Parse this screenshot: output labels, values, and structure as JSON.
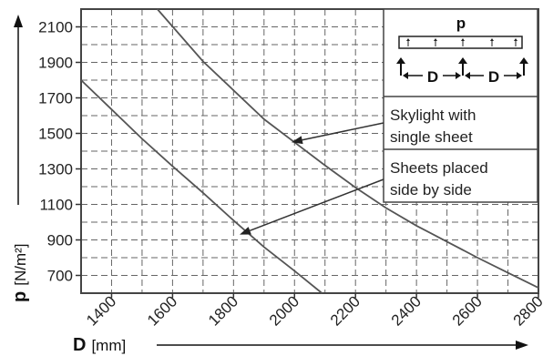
{
  "chart_data": {
    "type": "line",
    "title": "",
    "xlabel": {
      "symbol": "D",
      "unit": "[mm]"
    },
    "ylabel": {
      "symbol": "p",
      "unit": "[N/m²]"
    },
    "xlim": [
      1300,
      2800
    ],
    "ylim": [
      600,
      2200
    ],
    "x_major_ticks": [
      1400,
      1600,
      1800,
      2000,
      2200,
      2400,
      2600,
      2800
    ],
    "x_minor_ticks": [
      1300,
      1500,
      1700,
      1900,
      2100,
      2300,
      2500,
      2700
    ],
    "y_major_ticks": [
      700,
      900,
      1100,
      1300,
      1500,
      1700,
      1900,
      2100
    ],
    "y_minor_ticks": [
      600,
      800,
      1000,
      1200,
      1400,
      1600,
      1800,
      2000,
      2200
    ],
    "grid": true,
    "legend_position": "right",
    "series": [
      {
        "name": "Skylight with single sheet",
        "x": [
          1550,
          1700,
          1900,
          2000,
          2100,
          2200,
          2300,
          2400,
          2500,
          2600,
          2700,
          2800
        ],
        "y": [
          2200,
          1905,
          1580,
          1450,
          1320,
          1195,
          1080,
          980,
          890,
          800,
          715,
          630
        ]
      },
      {
        "name": "Sheets placed side by side",
        "x": [
          1300,
          1400,
          1500,
          1600,
          1700,
          1800,
          1900,
          2000,
          2090
        ],
        "y": [
          1800,
          1635,
          1470,
          1315,
          1165,
          1010,
          860,
          725,
          600
        ]
      }
    ],
    "annotations": [
      {
        "text_lines": [
          "Skylight with",
          "single sheet"
        ],
        "points_to": {
          "series": 0,
          "x": 1990,
          "y": 1450
        }
      },
      {
        "text_lines": [
          "Sheets placed",
          "side by side"
        ],
        "points_to": {
          "series": 1,
          "x": 1820,
          "y": 930
        }
      }
    ],
    "inset_diagram": {
      "load_label": "p",
      "span_label": "D",
      "span_count": 2
    }
  }
}
